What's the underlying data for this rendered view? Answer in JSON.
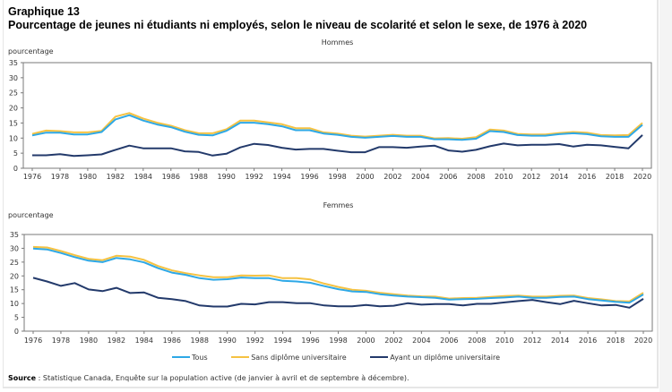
{
  "header": {
    "label": "Graphique 13",
    "title": "Pourcentage de jeunes ni étudiants ni employés, selon le niveau de scolarité et selon le sexe, de 1976 à 2020"
  },
  "legend": [
    {
      "name": "Tous",
      "color": "#2ea8e6"
    },
    {
      "name": "Sans diplôme universitaire",
      "color": "#f5c242"
    },
    {
      "name": "Ayant un diplôme universitaire",
      "color": "#233a6b"
    }
  ],
  "source": {
    "label": "Source",
    "sep": " : ",
    "text": "Statistique Canada, Enquête sur la population active (de janvier à avril et de septembre à décembre)."
  },
  "chart_data": [
    {
      "type": "line",
      "title": "Hommes",
      "xlabel": "",
      "ylabel": "pourcentage",
      "ylim": [
        0,
        35
      ],
      "yticks": [
        0,
        5,
        10,
        15,
        20,
        25,
        30,
        35
      ],
      "xticks": [
        1976,
        1978,
        1980,
        1982,
        1984,
        1986,
        1988,
        1990,
        1992,
        1994,
        1996,
        1998,
        2000,
        2002,
        2004,
        2006,
        2008,
        2010,
        2012,
        2014,
        2016,
        2018,
        2020
      ],
      "grid": false,
      "legend_position": "bottom",
      "x": [
        1976,
        1977,
        1978,
        1979,
        1980,
        1981,
        1982,
        1983,
        1984,
        1985,
        1986,
        1987,
        1988,
        1989,
        1990,
        1991,
        1992,
        1993,
        1994,
        1995,
        1996,
        1997,
        1998,
        1999,
        2000,
        2001,
        2002,
        2003,
        2004,
        2005,
        2006,
        2007,
        2008,
        2009,
        2010,
        2011,
        2012,
        2013,
        2014,
        2015,
        2016,
        2017,
        2018,
        2019,
        2020
      ],
      "series": [
        {
          "name": "Sans diplôme universitaire",
          "values": [
            11.4,
            12.5,
            12.3,
            11.9,
            11.9,
            12.4,
            17.1,
            18.3,
            16.5,
            15.1,
            14.1,
            12.6,
            11.6,
            11.6,
            12.9,
            15.8,
            15.8,
            15.2,
            14.6,
            13.3,
            13.3,
            11.9,
            11.5,
            10.8,
            10.5,
            10.8,
            11.1,
            10.8,
            10.8,
            9.9,
            10.0,
            9.8,
            10.3,
            12.8,
            12.5,
            11.4,
            11.2,
            11.2,
            11.7,
            12.0,
            11.8,
            11.0,
            10.9,
            11.0,
            15.0
          ]
        },
        {
          "name": "Tous",
          "values": [
            10.9,
            11.8,
            11.8,
            11.2,
            11.2,
            12.0,
            16.2,
            17.6,
            15.8,
            14.5,
            13.6,
            12.1,
            11.1,
            10.9,
            12.4,
            15.1,
            15.1,
            14.6,
            13.9,
            12.6,
            12.6,
            11.5,
            11.1,
            10.4,
            10.1,
            10.4,
            10.7,
            10.4,
            10.4,
            9.6,
            9.6,
            9.4,
            9.8,
            12.3,
            12.0,
            11.0,
            10.8,
            10.8,
            11.3,
            11.6,
            11.3,
            10.6,
            10.4,
            10.4,
            14.4
          ]
        },
        {
          "name": "Ayant un diplôme universitaire",
          "values": [
            4.3,
            4.3,
            4.7,
            4.1,
            4.3,
            4.6,
            6.1,
            7.5,
            6.6,
            6.6,
            6.6,
            5.6,
            5.4,
            4.2,
            4.8,
            6.9,
            8.1,
            7.7,
            6.8,
            6.2,
            6.4,
            6.4,
            5.8,
            5.3,
            5.3,
            7.0,
            7.0,
            6.8,
            7.2,
            7.5,
            5.9,
            5.5,
            6.1,
            7.3,
            8.2,
            7.6,
            7.8,
            7.8,
            8.0,
            7.2,
            7.8,
            7.6,
            7.1,
            6.6,
            11.0
          ]
        }
      ]
    },
    {
      "type": "line",
      "title": "Femmes",
      "xlabel": "",
      "ylabel": "pourcentage",
      "ylim": [
        0,
        35
      ],
      "yticks": [
        0,
        5,
        10,
        15,
        20,
        25,
        30,
        35
      ],
      "xticks": [
        1976,
        1978,
        1980,
        1982,
        1984,
        1986,
        1988,
        1990,
        1992,
        1994,
        1996,
        1998,
        2000,
        2002,
        2004,
        2006,
        2008,
        2010,
        2012,
        2014,
        2016,
        2018,
        2020
      ],
      "grid": false,
      "legend_position": "bottom",
      "x": [
        1976,
        1977,
        1978,
        1979,
        1980,
        1981,
        1982,
        1983,
        1984,
        1985,
        1986,
        1987,
        1988,
        1989,
        1990,
        1991,
        1992,
        1993,
        1994,
        1995,
        1996,
        1997,
        1998,
        1999,
        2000,
        2001,
        2002,
        2003,
        2004,
        2005,
        2006,
        2007,
        2008,
        2009,
        2010,
        2011,
        2012,
        2013,
        2014,
        2015,
        2016,
        2017,
        2018,
        2019,
        2020
      ],
      "series": [
        {
          "name": "Sans diplôme universitaire",
          "values": [
            30.5,
            30.3,
            29.0,
            27.5,
            26.2,
            25.7,
            27.3,
            27.0,
            25.8,
            23.6,
            22.0,
            21.0,
            20.2,
            19.5,
            19.5,
            20.2,
            20.1,
            20.2,
            19.2,
            19.2,
            18.7,
            17.2,
            16.0,
            15.0,
            14.6,
            13.9,
            13.4,
            12.9,
            12.6,
            12.5,
            11.8,
            12.0,
            12.1,
            12.4,
            12.7,
            12.9,
            12.5,
            12.5,
            12.8,
            12.9,
            12.0,
            11.5,
            10.9,
            10.8,
            13.9
          ]
        },
        {
          "name": "Tous",
          "values": [
            29.9,
            29.6,
            28.3,
            26.8,
            25.5,
            25.0,
            26.5,
            26.0,
            24.9,
            22.8,
            21.2,
            20.4,
            19.2,
            18.6,
            18.8,
            19.4,
            19.2,
            19.2,
            18.2,
            18.0,
            17.5,
            16.3,
            15.2,
            14.4,
            14.2,
            13.4,
            12.9,
            12.5,
            12.3,
            12.1,
            11.4,
            11.6,
            11.7,
            12.0,
            12.2,
            12.5,
            12.1,
            12.1,
            12.4,
            12.5,
            11.6,
            11.1,
            10.6,
            10.3,
            13.3
          ]
        },
        {
          "name": "Ayant un diplôme universitaire",
          "values": [
            19.3,
            18.0,
            16.4,
            17.4,
            15.1,
            14.5,
            15.7,
            13.8,
            14.0,
            12.1,
            11.6,
            10.9,
            9.3,
            8.9,
            8.9,
            9.9,
            9.7,
            10.5,
            10.5,
            10.1,
            10.1,
            9.3,
            9.0,
            9.0,
            9.5,
            9.0,
            9.2,
            10.1,
            9.6,
            9.8,
            9.8,
            9.3,
            9.9,
            9.9,
            10.4,
            10.9,
            11.3,
            10.5,
            9.8,
            11.0,
            10.1,
            9.3,
            9.5,
            8.5,
            11.7
          ]
        }
      ]
    }
  ]
}
